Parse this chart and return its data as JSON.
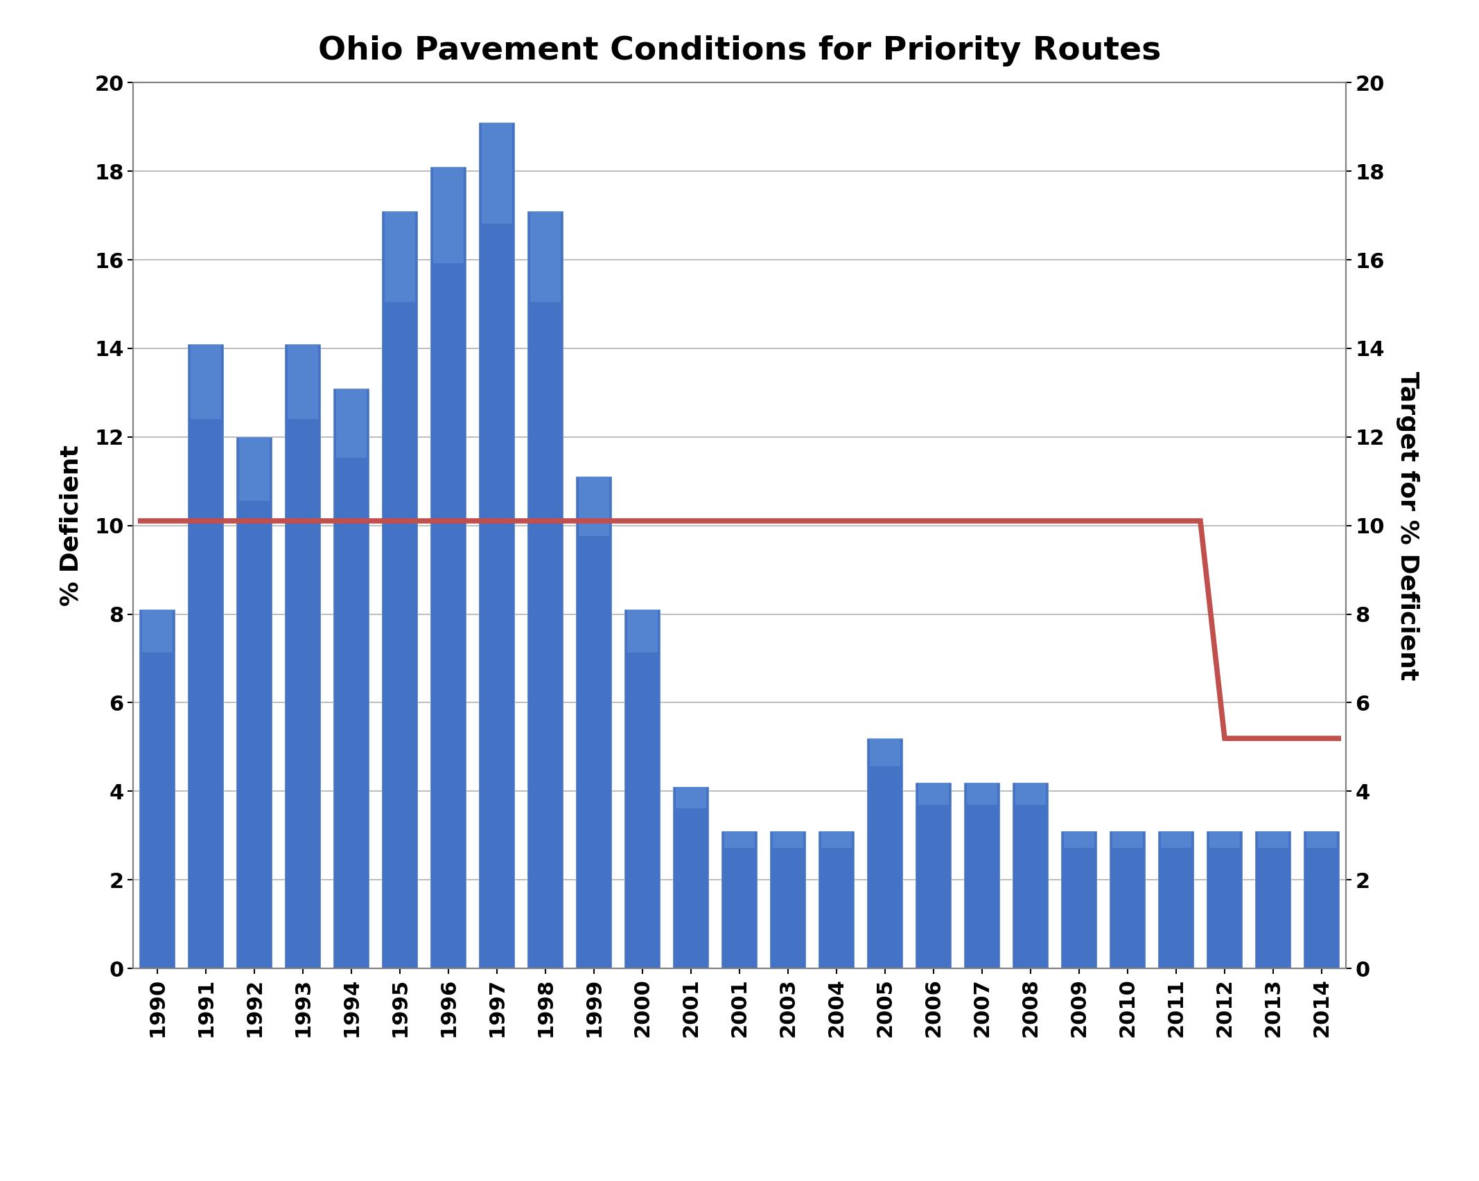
{
  "title": "Ohio Pavement Conditions for Priority Routes",
  "ylabel_left": "% Deficient",
  "ylabel_right": "Target for % Deficient",
  "years": [
    "1990",
    "1991",
    "1992",
    "1993",
    "1994",
    "1995",
    "1996",
    "1997",
    "1998",
    "1999",
    "2000",
    "2001",
    "2001",
    "2003",
    "2004",
    "2005",
    "2006",
    "2007",
    "2008",
    "2009",
    "2010",
    "2011",
    "2012",
    "2013",
    "2014"
  ],
  "values": [
    8.1,
    14.1,
    12.0,
    14.1,
    13.1,
    17.1,
    18.1,
    19.1,
    17.1,
    11.1,
    8.1,
    4.1,
    3.1,
    3.1,
    3.1,
    5.2,
    4.2,
    4.2,
    4.2,
    3.1,
    3.1,
    3.1,
    3.1,
    3.1,
    3.1
  ],
  "bar_color": "#4472C4",
  "bar_color_light": "#6090D8",
  "target_color": "#C0504D",
  "target_high": 10.1,
  "target_low": 5.2,
  "ylim": [
    0,
    20
  ],
  "yticks": [
    0,
    2,
    4,
    6,
    8,
    10,
    12,
    14,
    16,
    18,
    20
  ],
  "background_color": "#ffffff",
  "plot_bg_color": "#ffffff",
  "grid_color": "#b0b0b0",
  "border_color": "#808080",
  "title_fontsize": 34,
  "axis_label_fontsize": 26,
  "tick_fontsize": 22,
  "bar_width": 0.75,
  "target_linewidth": 5.5
}
